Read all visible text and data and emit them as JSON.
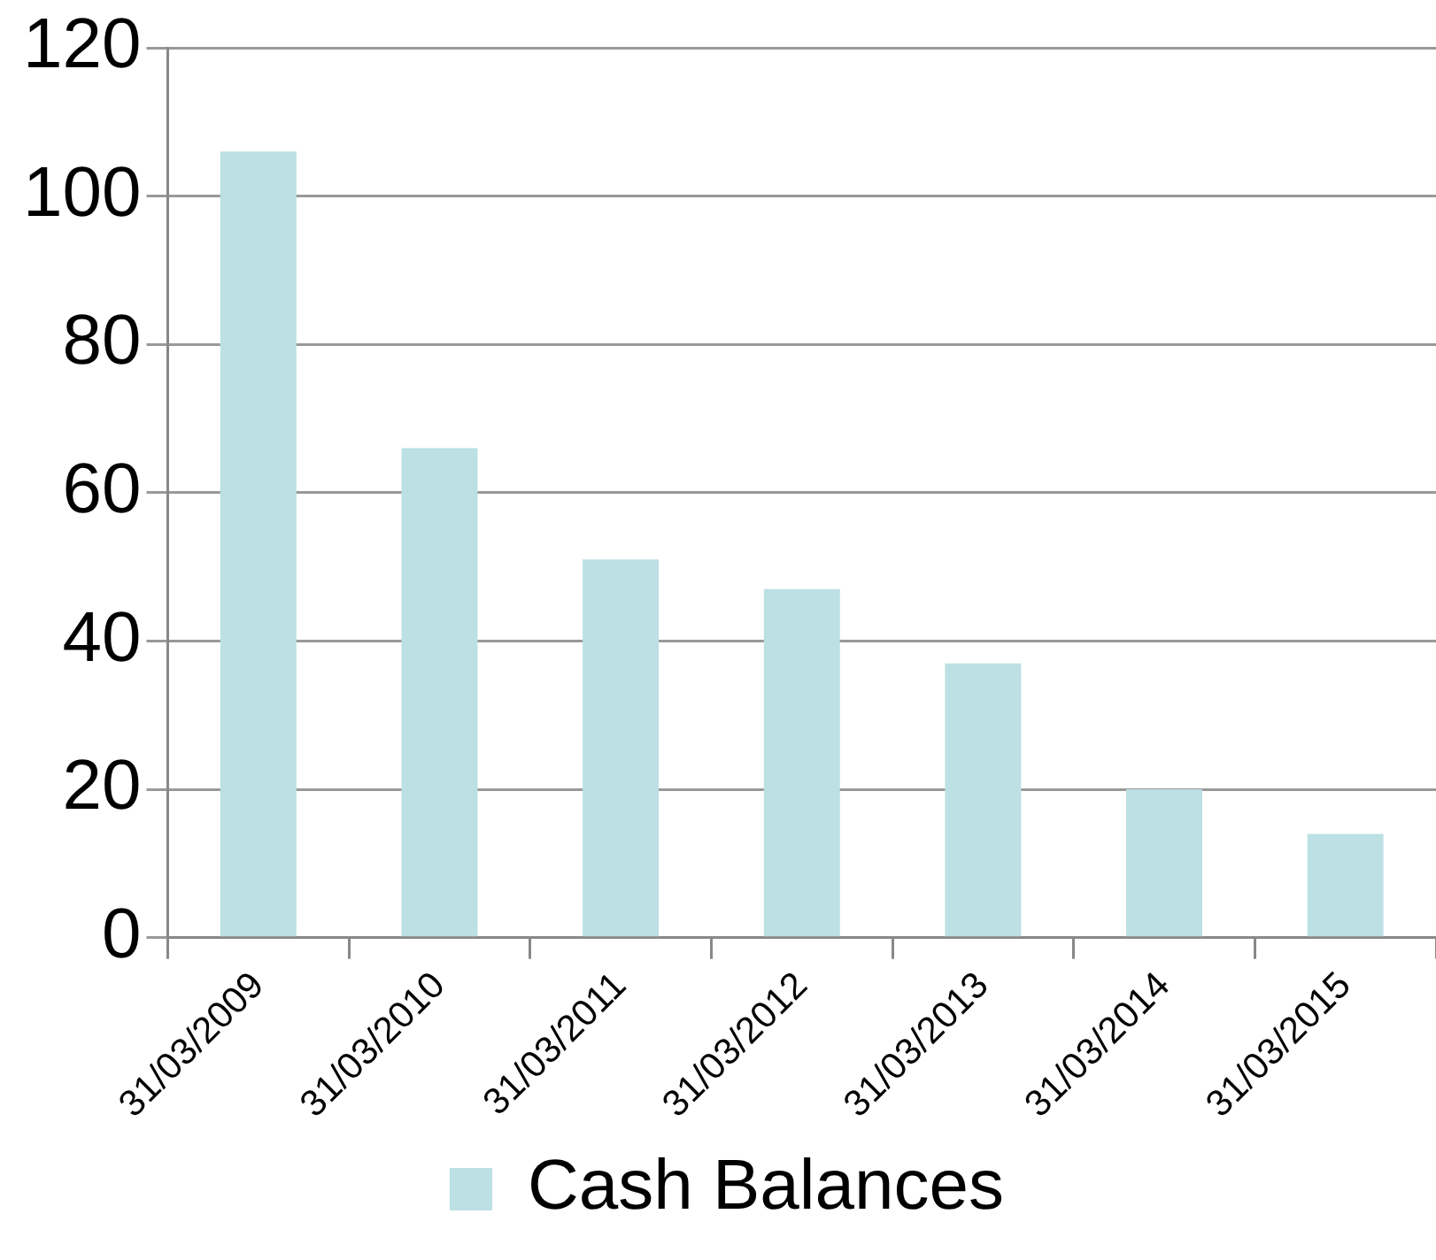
{
  "chart_data": {
    "type": "bar",
    "categories": [
      "31/03/2009",
      "31/03/2010",
      "31/03/2011",
      "31/03/2012",
      "31/03/2013",
      "31/03/2014",
      "31/03/2015"
    ],
    "series": [
      {
        "name": "Cash Balances",
        "color": "#bce0e3",
        "values": [
          106,
          66,
          51,
          47,
          37,
          20,
          14
        ]
      }
    ],
    "ylim": [
      0,
      120
    ],
    "yticks": [
      0,
      20,
      40,
      60,
      80,
      100,
      120
    ],
    "grid": "y",
    "legend": "bottom"
  }
}
